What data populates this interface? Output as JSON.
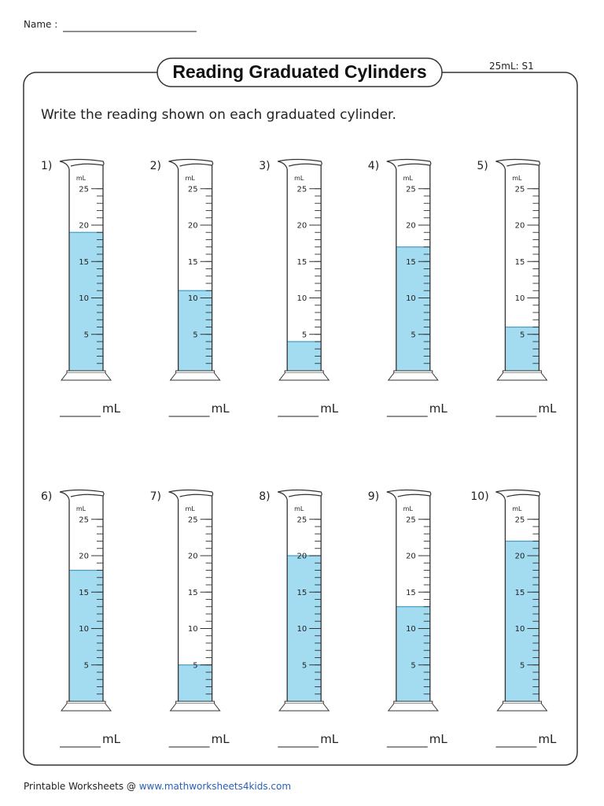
{
  "header": {
    "name_label": "Name :",
    "title": "Reading  Graduated Cylinders",
    "code": "25mL: S1"
  },
  "instruction": "Write the reading shown on each graduated cylinder.",
  "scale": {
    "unit": "mL",
    "labels": [
      5,
      10,
      15,
      20,
      25
    ]
  },
  "cylinders": [
    {
      "label": "1)",
      "level": 19,
      "unit": "mL"
    },
    {
      "label": "2)",
      "level": 11,
      "unit": "mL"
    },
    {
      "label": "3)",
      "level": 4,
      "unit": "mL"
    },
    {
      "label": "4)",
      "level": 17,
      "unit": "mL"
    },
    {
      "label": "5)",
      "level": 6,
      "unit": "mL"
    },
    {
      "label": "6)",
      "level": 18,
      "unit": "mL"
    },
    {
      "label": "7)",
      "level": 5,
      "unit": "mL"
    },
    {
      "label": "8)",
      "level": 20,
      "unit": "mL"
    },
    {
      "label": "9)",
      "level": 13,
      "unit": "mL"
    },
    {
      "label": "10)",
      "level": 22,
      "unit": "mL"
    }
  ],
  "footer": {
    "text": "Printable Worksheets @ ",
    "link": "www.mathworksheets4kids.com"
  }
}
